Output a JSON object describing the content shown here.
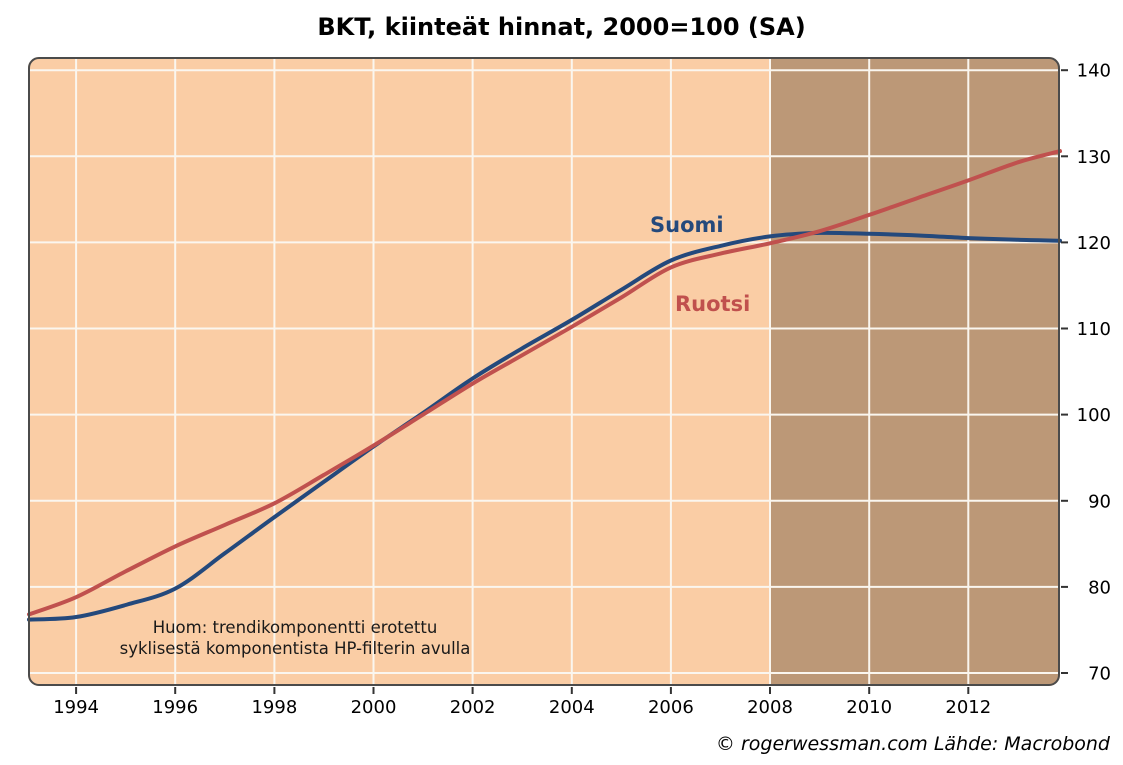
{
  "title": "BKT, kiinteät hinnat, 2000=100 (SA)",
  "annotation": {
    "line1": "Huom: trendikomponentti erotettu",
    "line2": "syklisestä komponentista HP-filterin avulla"
  },
  "footer": "© rogerwessman.com Lähde: Macrobond",
  "colors": {
    "plot_bg": "#FACDA5",
    "plot_bg_shaded": "#BC9877",
    "gridline": "#FAF6EF",
    "plot_border": "#4B4B4B",
    "tick": "#333333",
    "tick_label": "#000000",
    "suomi_line": "#24497C",
    "ruotsi_line": "#C0514E"
  },
  "chart_data": {
    "type": "line",
    "title": "BKT, kiinteät hinnat, 2000=100 (SA)",
    "xlabel": "",
    "ylabel": "",
    "x_range": [
      1993.03,
      2013.85
    ],
    "y_range": [
      68.49,
      141.53
    ],
    "x_ticks": [
      1994,
      1996,
      1998,
      2000,
      2002,
      2004,
      2006,
      2008,
      2010,
      2012
    ],
    "y_ticks": [
      70,
      80,
      90,
      100,
      110,
      120,
      130,
      140
    ],
    "grid": true,
    "y_axis_side": "right",
    "shade_from_year": 2008,
    "legend_position": "inline-labels",
    "series": [
      {
        "name": "Suomi",
        "color": "#24497C",
        "points": [
          [
            1993.05,
            76.2
          ],
          [
            1994,
            76.5
          ],
          [
            1995,
            77.9
          ],
          [
            1996,
            79.8
          ],
          [
            1997,
            83.9
          ],
          [
            1998,
            88.1
          ],
          [
            1999,
            92.2
          ],
          [
            2000,
            96.3
          ],
          [
            2001,
            100.2
          ],
          [
            2002,
            104.2
          ],
          [
            2003,
            107.7
          ],
          [
            2004,
            111.0
          ],
          [
            2005,
            114.5
          ],
          [
            2006,
            117.9
          ],
          [
            2007,
            119.6
          ],
          [
            2008,
            120.7
          ],
          [
            2009,
            121.1
          ],
          [
            2010,
            121.0
          ],
          [
            2011,
            120.8
          ],
          [
            2012,
            120.5
          ],
          [
            2013,
            120.3
          ],
          [
            2013.85,
            120.2
          ]
        ]
      },
      {
        "name": "Ruotsi",
        "color": "#C0514E",
        "points": [
          [
            1993.05,
            76.8
          ],
          [
            1994,
            78.8
          ],
          [
            1995,
            81.8
          ],
          [
            1996,
            84.7
          ],
          [
            1997,
            87.2
          ],
          [
            1998,
            89.7
          ],
          [
            1999,
            93.0
          ],
          [
            2000,
            96.4
          ],
          [
            2001,
            100.0
          ],
          [
            2002,
            103.6
          ],
          [
            2003,
            106.9
          ],
          [
            2004,
            110.2
          ],
          [
            2005,
            113.6
          ],
          [
            2006,
            117.1
          ],
          [
            2007,
            118.7
          ],
          [
            2008,
            119.9
          ],
          [
            2009,
            121.3
          ],
          [
            2010,
            123.2
          ],
          [
            2011,
            125.2
          ],
          [
            2012,
            127.2
          ],
          [
            2013,
            129.3
          ],
          [
            2013.85,
            130.6
          ]
        ]
      }
    ]
  }
}
